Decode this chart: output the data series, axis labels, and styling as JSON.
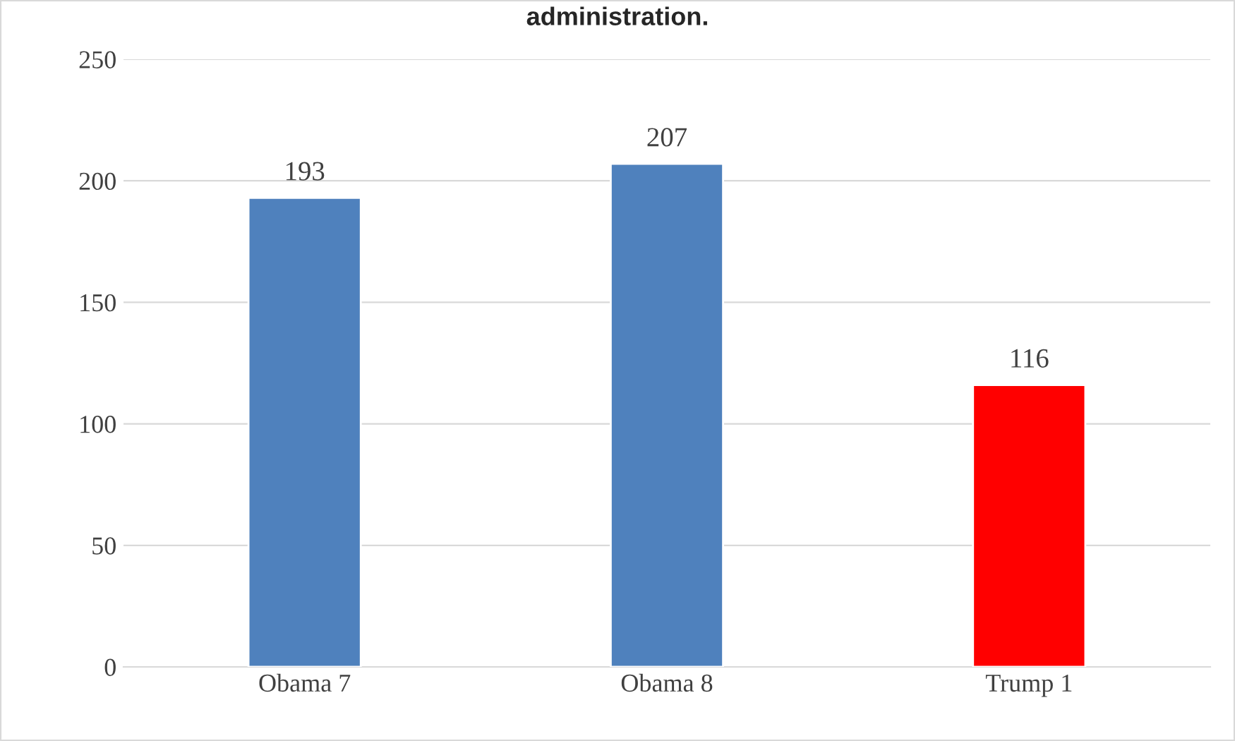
{
  "chart_data": {
    "type": "bar",
    "title": "administration.",
    "categories": [
      "Obama 7",
      "Obama 8",
      "Trump 1"
    ],
    "values": [
      193,
      207,
      116
    ],
    "colors": [
      "#4f81bd",
      "#4f81bd",
      "#ff0000"
    ],
    "ylim": [
      0,
      250
    ],
    "yticks": [
      0,
      50,
      100,
      150,
      200,
      250
    ],
    "grid": "y",
    "data_labels": true
  }
}
